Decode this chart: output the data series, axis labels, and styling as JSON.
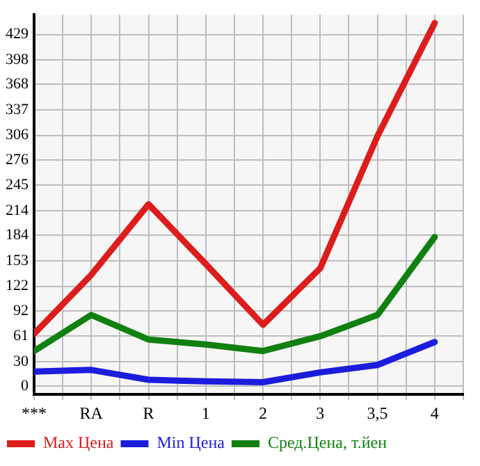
{
  "chart_data": {
    "type": "line",
    "categories": [
      "***",
      "RA",
      "R",
      "1",
      "2",
      "3",
      "3,5",
      "4"
    ],
    "series": [
      {
        "name": "Max Цена",
        "color": "#dd1c1c",
        "values": [
          64,
          136,
          222,
          149,
          75,
          144,
          305,
          443
        ]
      },
      {
        "name": "Min Цена",
        "color": "#1c1cdd",
        "values": [
          18,
          20,
          8,
          6,
          5,
          17,
          26,
          54
        ]
      },
      {
        "name": "Сред.Цена, т.йен",
        "color": "#108010",
        "values": [
          43,
          87,
          57,
          51,
          43,
          61,
          87,
          182
        ]
      }
    ],
    "ylim": [
      -10,
      453
    ],
    "yticks": [
      0,
      30,
      61,
      92,
      122,
      153,
      184,
      214,
      245,
      276,
      306,
      337,
      368,
      398,
      429
    ],
    "grid": true,
    "legend": "bottom",
    "marker": "none",
    "line_style": "solid"
  }
}
